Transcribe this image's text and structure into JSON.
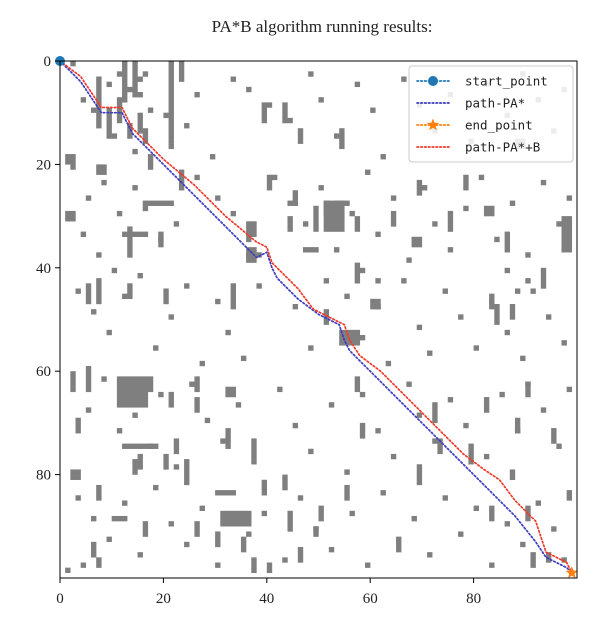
{
  "chart_data": {
    "type": "scatter",
    "title": "PA*B algorithm running results:",
    "xlabel": "",
    "ylabel": "",
    "xlim": [
      0,
      100
    ],
    "ylim": [
      0,
      100
    ],
    "y_inverted": true,
    "x_ticks": [
      "0",
      "20",
      "40",
      "60",
      "80"
    ],
    "y_ticks": [
      "0",
      "20",
      "40",
      "60",
      "80"
    ],
    "legend_position": "top-right",
    "obstacle_color": "#7f7f7f",
    "obstacles": [
      [
        2,
        0
      ],
      [
        4,
        7
      ],
      [
        6,
        9
      ],
      [
        9,
        4
      ],
      [
        11,
        2
      ],
      [
        13,
        5
      ],
      [
        15,
        3
      ],
      [
        15,
        6
      ],
      [
        16,
        2
      ],
      [
        17,
        9
      ],
      [
        10,
        14
      ],
      [
        14,
        17
      ],
      [
        20,
        10
      ],
      [
        24,
        12
      ],
      [
        21,
        16
      ],
      [
        26,
        6
      ],
      [
        29,
        18
      ],
      [
        33,
        3
      ],
      [
        36,
        5
      ],
      [
        40,
        8
      ],
      [
        44,
        11
      ],
      [
        48,
        2
      ],
      [
        50,
        7
      ],
      [
        53,
        14
      ],
      [
        57,
        4
      ],
      [
        60,
        9
      ],
      [
        62,
        18
      ],
      [
        66,
        3
      ],
      [
        69,
        8
      ],
      [
        72,
        13
      ],
      [
        75,
        6
      ],
      [
        79,
        15
      ],
      [
        82,
        4
      ],
      [
        86,
        10
      ],
      [
        89,
        2
      ],
      [
        92,
        7
      ],
      [
        95,
        13
      ],
      [
        97,
        5
      ],
      [
        2,
        20
      ],
      [
        5,
        26
      ],
      [
        8,
        23
      ],
      [
        11,
        29
      ],
      [
        14,
        24
      ],
      [
        4,
        33
      ],
      [
        7,
        37
      ],
      [
        10,
        40
      ],
      [
        16,
        28
      ],
      [
        19,
        34
      ],
      [
        22,
        31
      ],
      [
        26,
        22
      ],
      [
        30,
        26
      ],
      [
        33,
        29
      ],
      [
        36,
        34
      ],
      [
        41,
        22
      ],
      [
        44,
        27
      ],
      [
        47,
        31
      ],
      [
        50,
        24
      ],
      [
        53,
        36
      ],
      [
        56,
        29
      ],
      [
        59,
        21
      ],
      [
        61,
        33
      ],
      [
        64,
        26
      ],
      [
        67,
        38
      ],
      [
        70,
        24
      ],
      [
        72,
        31
      ],
      [
        75,
        36
      ],
      [
        78,
        28
      ],
      [
        81,
        22
      ],
      [
        84,
        34
      ],
      [
        87,
        27
      ],
      [
        90,
        37
      ],
      [
        93,
        23
      ],
      [
        96,
        31
      ],
      [
        98,
        26
      ],
      [
        3,
        44
      ],
      [
        6,
        48
      ],
      [
        9,
        52
      ],
      [
        12,
        45
      ],
      [
        15,
        41
      ],
      [
        18,
        55
      ],
      [
        21,
        49
      ],
      [
        24,
        43
      ],
      [
        27,
        58
      ],
      [
        30,
        46
      ],
      [
        32,
        52
      ],
      [
        35,
        57
      ],
      [
        38,
        43
      ],
      [
        45,
        47
      ],
      [
        48,
        55
      ],
      [
        51,
        42
      ],
      [
        55,
        45
      ],
      [
        58,
        53
      ],
      [
        61,
        47
      ],
      [
        63,
        58
      ],
      [
        66,
        42
      ],
      [
        69,
        51
      ],
      [
        71,
        56
      ],
      [
        74,
        44
      ],
      [
        77,
        49
      ],
      [
        80,
        55
      ],
      [
        83,
        46
      ],
      [
        86,
        52
      ],
      [
        89,
        57
      ],
      [
        91,
        44
      ],
      [
        94,
        49
      ],
      [
        97,
        54
      ],
      [
        2,
        63
      ],
      [
        5,
        67
      ],
      [
        8,
        61
      ],
      [
        11,
        71
      ],
      [
        14,
        68
      ],
      [
        17,
        74
      ],
      [
        19,
        64
      ],
      [
        22,
        78
      ],
      [
        25,
        62
      ],
      [
        28,
        69
      ],
      [
        31,
        73
      ],
      [
        34,
        66
      ],
      [
        37,
        77
      ],
      [
        42,
        63
      ],
      [
        45,
        70
      ],
      [
        48,
        75
      ],
      [
        52,
        66
      ],
      [
        55,
        79
      ],
      [
        58,
        64
      ],
      [
        61,
        71
      ],
      [
        64,
        76
      ],
      [
        67,
        62
      ],
      [
        69,
        68
      ],
      [
        72,
        73
      ],
      [
        75,
        65
      ],
      [
        78,
        70
      ],
      [
        82,
        76
      ],
      [
        85,
        64
      ],
      [
        88,
        71
      ],
      [
        90,
        62
      ],
      [
        93,
        67
      ],
      [
        96,
        74
      ],
      [
        98,
        63
      ],
      [
        3,
        84
      ],
      [
        6,
        88
      ],
      [
        9,
        92
      ],
      [
        12,
        85
      ],
      [
        15,
        95
      ],
      [
        18,
        82
      ],
      [
        21,
        89
      ],
      [
        24,
        93
      ],
      [
        27,
        86
      ],
      [
        30,
        97
      ],
      [
        33,
        83
      ],
      [
        36,
        91
      ],
      [
        39,
        87
      ],
      [
        43,
        96
      ],
      [
        46,
        84
      ],
      [
        49,
        90
      ],
      [
        52,
        94
      ],
      [
        56,
        87
      ],
      [
        59,
        97
      ],
      [
        62,
        83
      ],
      [
        65,
        92
      ],
      [
        68,
        88
      ],
      [
        71,
        95
      ],
      [
        74,
        84
      ],
      [
        77,
        91
      ],
      [
        80,
        86
      ],
      [
        83,
        97
      ],
      [
        86,
        89
      ],
      [
        89,
        93
      ],
      [
        92,
        85
      ],
      [
        95,
        90
      ],
      [
        97,
        96
      ],
      [
        1,
        98
      ],
      [
        4,
        97
      ],
      [
        58,
        40
      ],
      [
        61,
        42
      ],
      [
        86,
        40
      ],
      [
        88,
        44
      ],
      [
        90,
        42
      ]
    ],
    "obstacle_blocks": [
      [
        12,
        0,
        1,
        8
      ],
      [
        14,
        0,
        1,
        7
      ],
      [
        21,
        0,
        1,
        16
      ],
      [
        23,
        0,
        1,
        4
      ],
      [
        7,
        3,
        1,
        10
      ],
      [
        9,
        9,
        1,
        6
      ],
      [
        11,
        7,
        1,
        5
      ],
      [
        13,
        12,
        1,
        3
      ],
      [
        15,
        10,
        1,
        4
      ],
      [
        16,
        13,
        1,
        3
      ],
      [
        17,
        18,
        1,
        3
      ],
      [
        23,
        21,
        1,
        4
      ],
      [
        1,
        18,
        2,
        2
      ],
      [
        7,
        20,
        2,
        2
      ],
      [
        16,
        27,
        6,
        1
      ],
      [
        1,
        29,
        2,
        2
      ],
      [
        13,
        32,
        1,
        6
      ],
      [
        19,
        33,
        1,
        3
      ],
      [
        12,
        33,
        5,
        1
      ],
      [
        20,
        44,
        1,
        3
      ],
      [
        5,
        43,
        1,
        4
      ],
      [
        13,
        43,
        1,
        3
      ],
      [
        7,
        42,
        1,
        5
      ],
      [
        33,
        43,
        1,
        5
      ],
      [
        39,
        8,
        1,
        4
      ],
      [
        43,
        8,
        1,
        4
      ],
      [
        54,
        13,
        1,
        4
      ],
      [
        40,
        22,
        1,
        3
      ],
      [
        45,
        25,
        1,
        3
      ],
      [
        36,
        36,
        2,
        3
      ],
      [
        46,
        13,
        1,
        3
      ],
      [
        53,
        27,
        3,
        1
      ],
      [
        51,
        27,
        1,
        3
      ],
      [
        57,
        30,
        1,
        3
      ],
      [
        64,
        29,
        1,
        3
      ],
      [
        36,
        37,
        3,
        1
      ],
      [
        47,
        36,
        3,
        1
      ],
      [
        57,
        39,
        1,
        4
      ],
      [
        69,
        23,
        1,
        3
      ],
      [
        68,
        34,
        2,
        2
      ],
      [
        82,
        28,
        2,
        2
      ],
      [
        88,
        15,
        2,
        2
      ],
      [
        60,
        46,
        2,
        2
      ],
      [
        87,
        47,
        1,
        3
      ],
      [
        83,
        45,
        1,
        3
      ],
      [
        54,
        52,
        4,
        3
      ],
      [
        11,
        61,
        6,
        6
      ],
      [
        5,
        59,
        1,
        5
      ],
      [
        2,
        60,
        1,
        3
      ],
      [
        17,
        61,
        1,
        3
      ],
      [
        26,
        65,
        1,
        3
      ],
      [
        32,
        71,
        1,
        4
      ],
      [
        3,
        69,
        1,
        3
      ],
      [
        37,
        73,
        1,
        4
      ],
      [
        12,
        74,
        7,
        1
      ],
      [
        14,
        77,
        1,
        3
      ],
      [
        15,
        76,
        1,
        3
      ],
      [
        20,
        76,
        1,
        3
      ],
      [
        22,
        73,
        1,
        3
      ],
      [
        24,
        77,
        1,
        5
      ],
      [
        10,
        88,
        3,
        1
      ],
      [
        16,
        89,
        1,
        3
      ],
      [
        7,
        96,
        1,
        2
      ],
      [
        26,
        89,
        1,
        3
      ],
      [
        30,
        91,
        1,
        3
      ],
      [
        35,
        92,
        1,
        3
      ],
      [
        37,
        96,
        1,
        3
      ],
      [
        40,
        97,
        1,
        2
      ],
      [
        46,
        94,
        1,
        3
      ],
      [
        49,
        90,
        1,
        2
      ],
      [
        44,
        87,
        1,
        4
      ],
      [
        69,
        78,
        1,
        4
      ],
      [
        79,
        74,
        1,
        4
      ],
      [
        83,
        86,
        1,
        3
      ],
      [
        87,
        79,
        1,
        2
      ],
      [
        95,
        71,
        1,
        3
      ],
      [
        91,
        95,
        1,
        3
      ],
      [
        94,
        95,
        1,
        2
      ],
      [
        98,
        83,
        1,
        2
      ],
      [
        84,
        47,
        1,
        4
      ],
      [
        82,
        65,
        1,
        3
      ],
      [
        31,
        87,
        6,
        3
      ],
      [
        75,
        29,
        1,
        4
      ],
      [
        86,
        33,
        1,
        4
      ],
      [
        97,
        31,
        2,
        6
      ],
      [
        93,
        40,
        1,
        4
      ],
      [
        88,
        69,
        1,
        3
      ],
      [
        72,
        66,
        1,
        4
      ],
      [
        73,
        73,
        1,
        3
      ],
      [
        90,
        86,
        1,
        3
      ],
      [
        2,
        79,
        2,
        2
      ],
      [
        7,
        82,
        1,
        3
      ],
      [
        6,
        93,
        1,
        3
      ],
      [
        65,
        93,
        1,
        2
      ],
      [
        30,
        83,
        3,
        1
      ],
      [
        39,
        81,
        1,
        3
      ],
      [
        43,
        80,
        1,
        3
      ],
      [
        51,
        48,
        1,
        3
      ],
      [
        57,
        61,
        1,
        3
      ],
      [
        58,
        70,
        1,
        3
      ],
      [
        50,
        86,
        1,
        3
      ],
      [
        55,
        82,
        1,
        3
      ],
      [
        32,
        63,
        2,
        2
      ],
      [
        21,
        64,
        1,
        3
      ],
      [
        26,
        61,
        1,
        3
      ],
      [
        90,
        62,
        1,
        3
      ],
      [
        97,
        30,
        2,
        2
      ],
      [
        44,
        30,
        1,
        3
      ],
      [
        49,
        28,
        1,
        5
      ],
      [
        36,
        31,
        2,
        3
      ],
      [
        51,
        27,
        4,
        6
      ],
      [
        78,
        22,
        1,
        3
      ]
    ],
    "series": [
      {
        "name": "start_point",
        "color": "#1f77b4",
        "marker": "circle",
        "x": [
          0
        ],
        "y": [
          0
        ]
      },
      {
        "name": "path-PA*",
        "color": "#3d3dbf",
        "marker": "none",
        "linestyle": "dotted",
        "x": [
          0,
          4,
          8,
          12,
          14,
          20,
          26,
          32,
          38,
          40,
          41,
          42,
          46,
          50,
          52,
          54,
          55,
          56,
          58,
          62,
          66,
          70,
          74,
          78,
          82,
          84,
          88,
          92,
          94,
          96,
          98,
          99
        ],
        "y": [
          0,
          4,
          10,
          10,
          14,
          20,
          26,
          32,
          38,
          37,
          40,
          42,
          46,
          49,
          50,
          51,
          54,
          56,
          58,
          62,
          66,
          70,
          74,
          78,
          82,
          84,
          88,
          93,
          96,
          97,
          98,
          99
        ]
      },
      {
        "name": "end_point",
        "color": "#ff7f0e",
        "marker": "star",
        "x": [
          99
        ],
        "y": [
          99
        ]
      },
      {
        "name": "path-PA*+B",
        "color": "#ef3a2a",
        "marker": "none",
        "linestyle": "dotted",
        "x": [
          0,
          4,
          8,
          12,
          14,
          20,
          26,
          32,
          38,
          40,
          41,
          43,
          46,
          49,
          53,
          55,
          56,
          58,
          62,
          66,
          70,
          74,
          78,
          82,
          85,
          88,
          92,
          94,
          96,
          98,
          99
        ],
        "y": [
          0,
          3,
          9,
          9,
          13,
          19,
          24,
          30,
          35,
          36,
          39,
          41,
          44,
          48,
          50,
          51,
          54,
          57,
          60,
          64,
          68,
          72,
          76,
          79,
          81,
          85,
          89,
          95,
          96,
          97,
          99
        ]
      }
    ]
  }
}
